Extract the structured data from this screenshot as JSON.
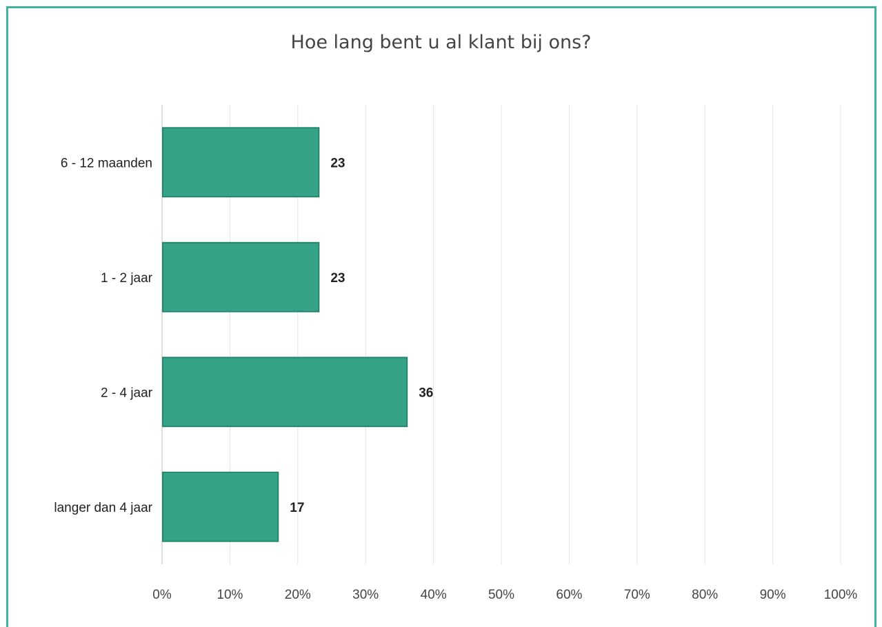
{
  "colors": {
    "frame": "#3fb3a0",
    "bar_fill": "#34a387",
    "bar_stroke": "#27866c",
    "gridline": "#e3e3e3",
    "axis": "#bdbdbd"
  },
  "chart_data": {
    "type": "bar",
    "orientation": "horizontal",
    "title": "Hoe lang bent u al klant bij ons?",
    "categories": [
      "6 - 12 maanden",
      "1 - 2 jaar",
      "2 - 4 jaar",
      "langer dan 4 jaar"
    ],
    "values": [
      23,
      23,
      36,
      17
    ],
    "data_labels": [
      "23",
      "23",
      "36",
      "17"
    ],
    "xlim": [
      0,
      100
    ],
    "x_ticks": [
      "0%",
      "10%",
      "20%",
      "30%",
      "40%",
      "50%",
      "60%",
      "70%",
      "80%",
      "90%",
      "100%"
    ],
    "grid": true,
    "legend": "none"
  }
}
